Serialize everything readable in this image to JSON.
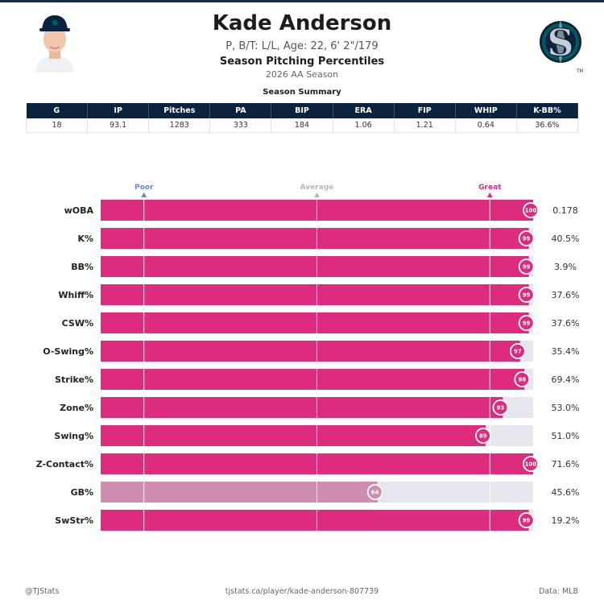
{
  "header": {
    "name": "Kade Anderson",
    "info": "P, B/T: L/L, Age: 22, 6' 2\"/179",
    "chart_title": "Season Pitching Percentiles",
    "season": "2026 AA Season",
    "summary_title": "Season Summary",
    "logo_letter": "S",
    "logo_tm": "TM"
  },
  "summary": {
    "columns": [
      "G",
      "IP",
      "Pitches",
      "PA",
      "BIP",
      "ERA",
      "FIP",
      "WHIP",
      "K-BB%"
    ],
    "values": [
      "18",
      "93.1",
      "1283",
      "333",
      "184",
      "1.06",
      "1.21",
      "0.64",
      "36.6%"
    ]
  },
  "colors": {
    "great": "#dd2b7e",
    "average_bar": "#cf8eb0",
    "track": "#e6e7ee",
    "header_navy": "#0c2340",
    "poor_label": "#6b85c6",
    "average_label": "#b8b8b8"
  },
  "chart_data": {
    "type": "bar",
    "orientation": "horizontal",
    "xlim": [
      0,
      100
    ],
    "markers": [
      {
        "label": "Poor",
        "value": 10
      },
      {
        "label": "Average",
        "value": 50
      },
      {
        "label": "Great",
        "value": 90
      }
    ],
    "categories": [
      "wOBA",
      "K%",
      "BB%",
      "Whiff%",
      "CSW%",
      "O-Swing%",
      "Strike%",
      "Zone%",
      "Swing%",
      "Z-Contact%",
      "GB%",
      "SwStr%"
    ],
    "values": [
      100,
      99,
      99,
      99,
      99,
      97,
      98,
      93,
      89,
      100,
      64,
      99
    ],
    "stat_values": [
      "0.178",
      "40.5%",
      "3.9%",
      "37.6%",
      "37.6%",
      "35.4%",
      "69.4%",
      "53.0%",
      "51.0%",
      "71.6%",
      "45.6%",
      "19.2%"
    ]
  },
  "footer": {
    "left": "@TJStats",
    "center": "tjstats.ca/player/kade-anderson-807739",
    "right": "Data: MLB"
  }
}
